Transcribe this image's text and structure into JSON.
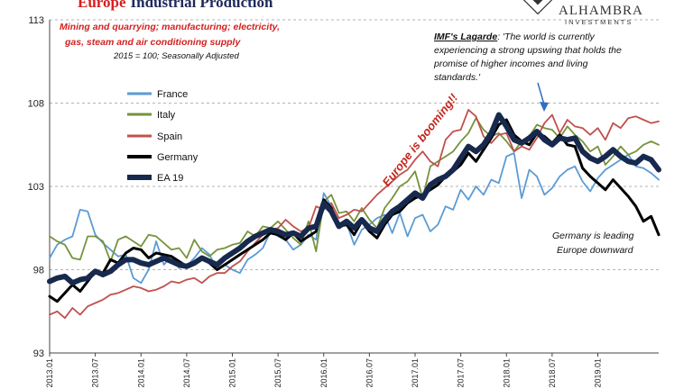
{
  "chart_data": {
    "type": "line",
    "title_prefix": "Europe",
    "title_suffix": "Industrial Production",
    "subtitle_lines": [
      "Mining and quarrying; manufacturing; electricity,",
      "gas, steam and air conditioning supply"
    ],
    "subtitle_note": "2015 = 100; Seasonally Adjusted",
    "ylim": [
      93,
      113
    ],
    "yticks": [
      93,
      98,
      103,
      108,
      113
    ],
    "x_ticks": [
      "2013.01",
      "2013.07",
      "2014.01",
      "2014.07",
      "2015.01",
      "2015.07",
      "2016.01",
      "2016.07",
      "2017.01",
      "2017.07",
      "2018.01",
      "2018.07",
      "2019.01"
    ],
    "x_tick_labels": [
      "2013.01",
      "2013.07",
      "2014.01",
      "2014.07",
      "2015.01",
      "2015.07",
      "2016.01",
      "2016.07",
      "2017.01",
      "2017.07",
      "2018.01",
      "2018.07",
      "2019.01"
    ],
    "x_range_months": [
      0,
      80
    ],
    "series": [
      {
        "name": "France",
        "color": "#5b9bd5",
        "values": [
          98.7,
          99.5,
          99.8,
          100.0,
          101.6,
          101.5,
          100.1,
          99.6,
          99.2,
          98.8,
          98.9,
          97.5,
          97.2,
          98.0,
          99.7,
          98.3,
          98.8,
          98.1,
          98.2,
          98.7,
          99.3,
          98.9,
          98.0,
          98.3,
          98.0,
          97.8,
          98.6,
          98.9,
          99.3,
          100.3,
          100.0,
          99.8,
          99.2,
          99.5,
          100.1,
          99.8,
          102.6,
          101.8,
          100.6,
          100.8,
          99.5,
          100.4,
          100.7,
          101.1,
          101.3,
          100.2,
          101.4,
          100.0,
          101.1,
          101.3,
          100.3,
          100.7,
          101.8,
          101.6,
          102.8,
          102.2,
          103.0,
          102.5,
          103.4,
          103.2,
          104.8,
          105.0,
          102.3,
          104.0,
          103.6,
          102.5,
          102.9,
          103.6,
          104.0,
          104.2,
          103.3,
          102.7,
          103.5,
          104.0,
          104.3,
          104.6,
          104.9,
          104.2,
          104.1,
          103.8,
          103.4
        ]
      },
      {
        "name": "Italy",
        "color": "#76933c",
        "values": [
          100.0,
          99.7,
          99.5,
          98.7,
          98.6,
          100.0,
          100.0,
          99.7,
          98.5,
          99.8,
          100.0,
          99.7,
          99.4,
          100.1,
          100.0,
          99.6,
          99.2,
          99.3,
          98.7,
          99.8,
          99.1,
          98.8,
          99.2,
          99.3,
          99.5,
          99.6,
          100.3,
          100.0,
          100.6,
          100.5,
          100.9,
          100.4,
          99.9,
          99.5,
          100.9,
          99.1,
          102.1,
          102.5,
          101.4,
          101.5,
          100.9,
          101.7,
          101.0,
          100.5,
          101.7,
          102.3,
          103.0,
          103.3,
          103.9,
          102.3,
          104.2,
          104.5,
          104.8,
          105.1,
          105.7,
          106.2,
          107.1,
          106.4,
          106.0,
          106.2,
          105.7,
          105.1,
          105.7,
          106.0,
          106.7,
          106.5,
          106.4,
          105.9,
          106.6,
          106.1,
          105.7,
          105.1,
          105.4,
          104.3,
          104.8,
          105.4,
          104.9,
          105.1,
          105.5,
          105.7,
          105.5
        ]
      },
      {
        "name": "Spain",
        "color": "#c0504d",
        "values": [
          95.3,
          95.5,
          95.1,
          95.7,
          95.3,
          95.8,
          96.0,
          96.2,
          96.5,
          96.6,
          96.8,
          97.0,
          96.9,
          96.7,
          96.8,
          97.0,
          97.3,
          97.2,
          97.4,
          97.5,
          97.2,
          97.6,
          97.8,
          97.8,
          98.2,
          98.5,
          99.1,
          99.6,
          100.1,
          100.4,
          100.5,
          101.0,
          100.6,
          100.3,
          100.5,
          101.8,
          101.6,
          102.0,
          101.1,
          101.3,
          101.6,
          101.5,
          102.0,
          102.5,
          102.9,
          103.3,
          103.7,
          104.0,
          104.6,
          105.1,
          104.5,
          104.2,
          105.8,
          106.3,
          106.4,
          107.6,
          107.2,
          106.0,
          105.6,
          106.1,
          106.2,
          105.1,
          105.4,
          105.2,
          105.9,
          106.8,
          107.3,
          106.2,
          107.0,
          106.6,
          106.5,
          106.1,
          106.5,
          105.8,
          106.8,
          106.5,
          107.1,
          107.2,
          107.0,
          106.8,
          106.9
        ]
      },
      {
        "name": "Germany",
        "color": "#000000",
        "values": [
          96.4,
          96.1,
          96.6,
          97.1,
          96.7,
          97.3,
          97.9,
          97.8,
          98.6,
          98.4,
          99.0,
          99.3,
          99.2,
          98.7,
          99.0,
          98.9,
          98.8,
          98.5,
          98.2,
          98.4,
          98.7,
          98.4,
          98.0,
          98.3,
          98.6,
          98.9,
          99.2,
          99.5,
          99.8,
          100.2,
          100.1,
          99.8,
          100.2,
          99.7,
          100.0,
          100.3,
          102.2,
          101.7,
          100.6,
          100.7,
          100.1,
          100.9,
          100.3,
          99.9,
          100.7,
          101.3,
          101.5,
          102.0,
          102.3,
          102.5,
          102.8,
          103.1,
          103.6,
          103.9,
          104.3,
          105.0,
          104.5,
          105.2,
          105.9,
          106.7,
          107.0,
          106.1,
          105.7,
          105.5,
          106.2,
          106.0,
          105.6,
          106.1,
          105.5,
          105.4,
          104.1,
          103.6,
          103.2,
          102.8,
          103.4,
          102.9,
          102.4,
          101.8,
          100.9,
          101.2,
          100.1
        ]
      },
      {
        "name": "EA 19",
        "color": "#17294d",
        "values": [
          97.3,
          97.5,
          97.6,
          97.2,
          97.4,
          97.5,
          97.9,
          97.7,
          97.9,
          98.3,
          98.6,
          98.6,
          98.4,
          98.3,
          98.5,
          98.7,
          98.5,
          98.3,
          98.2,
          98.4,
          98.7,
          98.5,
          98.3,
          98.7,
          99.0,
          99.3,
          99.7,
          100.0,
          100.2,
          100.4,
          100.3,
          100.1,
          100.2,
          100.0,
          100.5,
          100.6,
          102.0,
          101.5,
          100.6,
          100.9,
          100.5,
          101.0,
          100.5,
          100.3,
          101.0,
          101.5,
          101.8,
          102.2,
          102.6,
          102.3,
          103.1,
          103.4,
          103.6,
          104.0,
          104.7,
          105.4,
          105.1,
          105.5,
          106.2,
          107.3,
          106.6,
          105.8,
          105.6,
          105.9,
          106.3,
          105.8,
          105.5,
          105.9,
          105.8,
          105.9,
          105.1,
          104.7,
          104.5,
          104.8,
          105.2,
          104.8,
          104.5,
          104.4,
          104.8,
          104.6,
          104.0
        ]
      }
    ],
    "annotations": {
      "lagarde_label": "IMF's Lagarde",
      "lagarde_quote_lines": [
        ": 'The world is currently",
        "experiencing a strong upswing that holds the",
        "promise of higher incomes and living",
        "standards.'"
      ],
      "booming": "Europe is booming!!",
      "germany_note_lines": [
        "Germany is leading",
        "Europe downward"
      ]
    }
  },
  "logo": {
    "name": "ALHAMBRA",
    "sub": "INVESTMENTS"
  }
}
